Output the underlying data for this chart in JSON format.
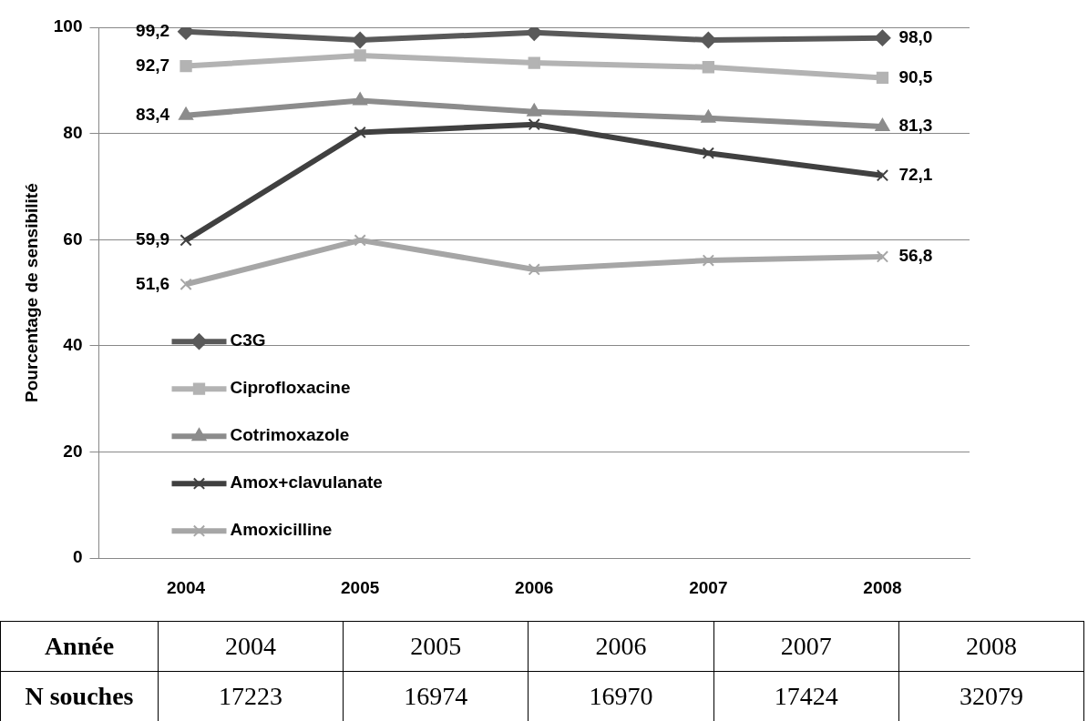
{
  "chart_data": {
    "type": "line",
    "ylabel": "Pourcentage de sensibilité",
    "categories": [
      "2004",
      "2005",
      "2006",
      "2007",
      "2008"
    ],
    "series": [
      {
        "name": "C3G",
        "color": "#595959",
        "marker": "diamond",
        "values": [
          99.2,
          97.6,
          99.0,
          97.6,
          98.0
        ],
        "value_labels": [
          "99,2",
          null,
          null,
          null,
          "98,0"
        ]
      },
      {
        "name": "Ciprofloxacine",
        "color": "#b3b3b3",
        "marker": "square",
        "values": [
          92.7,
          94.7,
          93.3,
          92.5,
          90.5
        ],
        "value_labels": [
          "92,7",
          null,
          null,
          null,
          "90,5"
        ]
      },
      {
        "name": "Cotrimoxazole",
        "color": "#8c8c8c",
        "marker": "triangle",
        "values": [
          83.4,
          86.2,
          84.1,
          82.9,
          81.3
        ],
        "value_labels": [
          "83,4",
          null,
          null,
          null,
          "81,3"
        ]
      },
      {
        "name": "Amox+clavulanate",
        "color": "#404040",
        "marker": "cross",
        "values": [
          59.9,
          80.2,
          81.7,
          76.3,
          72.1
        ],
        "value_labels": [
          "59,9",
          null,
          null,
          null,
          "72,1"
        ]
      },
      {
        "name": "Amoxicilline",
        "color": "#a6a6a6",
        "marker": "cross",
        "values": [
          51.6,
          59.9,
          54.4,
          56.1,
          56.8
        ],
        "value_labels": [
          "51,6",
          null,
          null,
          null,
          "56,8"
        ]
      }
    ],
    "ylim": [
      0,
      100
    ],
    "yticks": [
      0,
      20,
      40,
      60,
      80,
      100
    ],
    "grid": "y",
    "legend": "bottom left",
    "annotations": [
      "Année",
      "N souches",
      "17223",
      "16974",
      "16970",
      "17424",
      "32079"
    ]
  }
}
